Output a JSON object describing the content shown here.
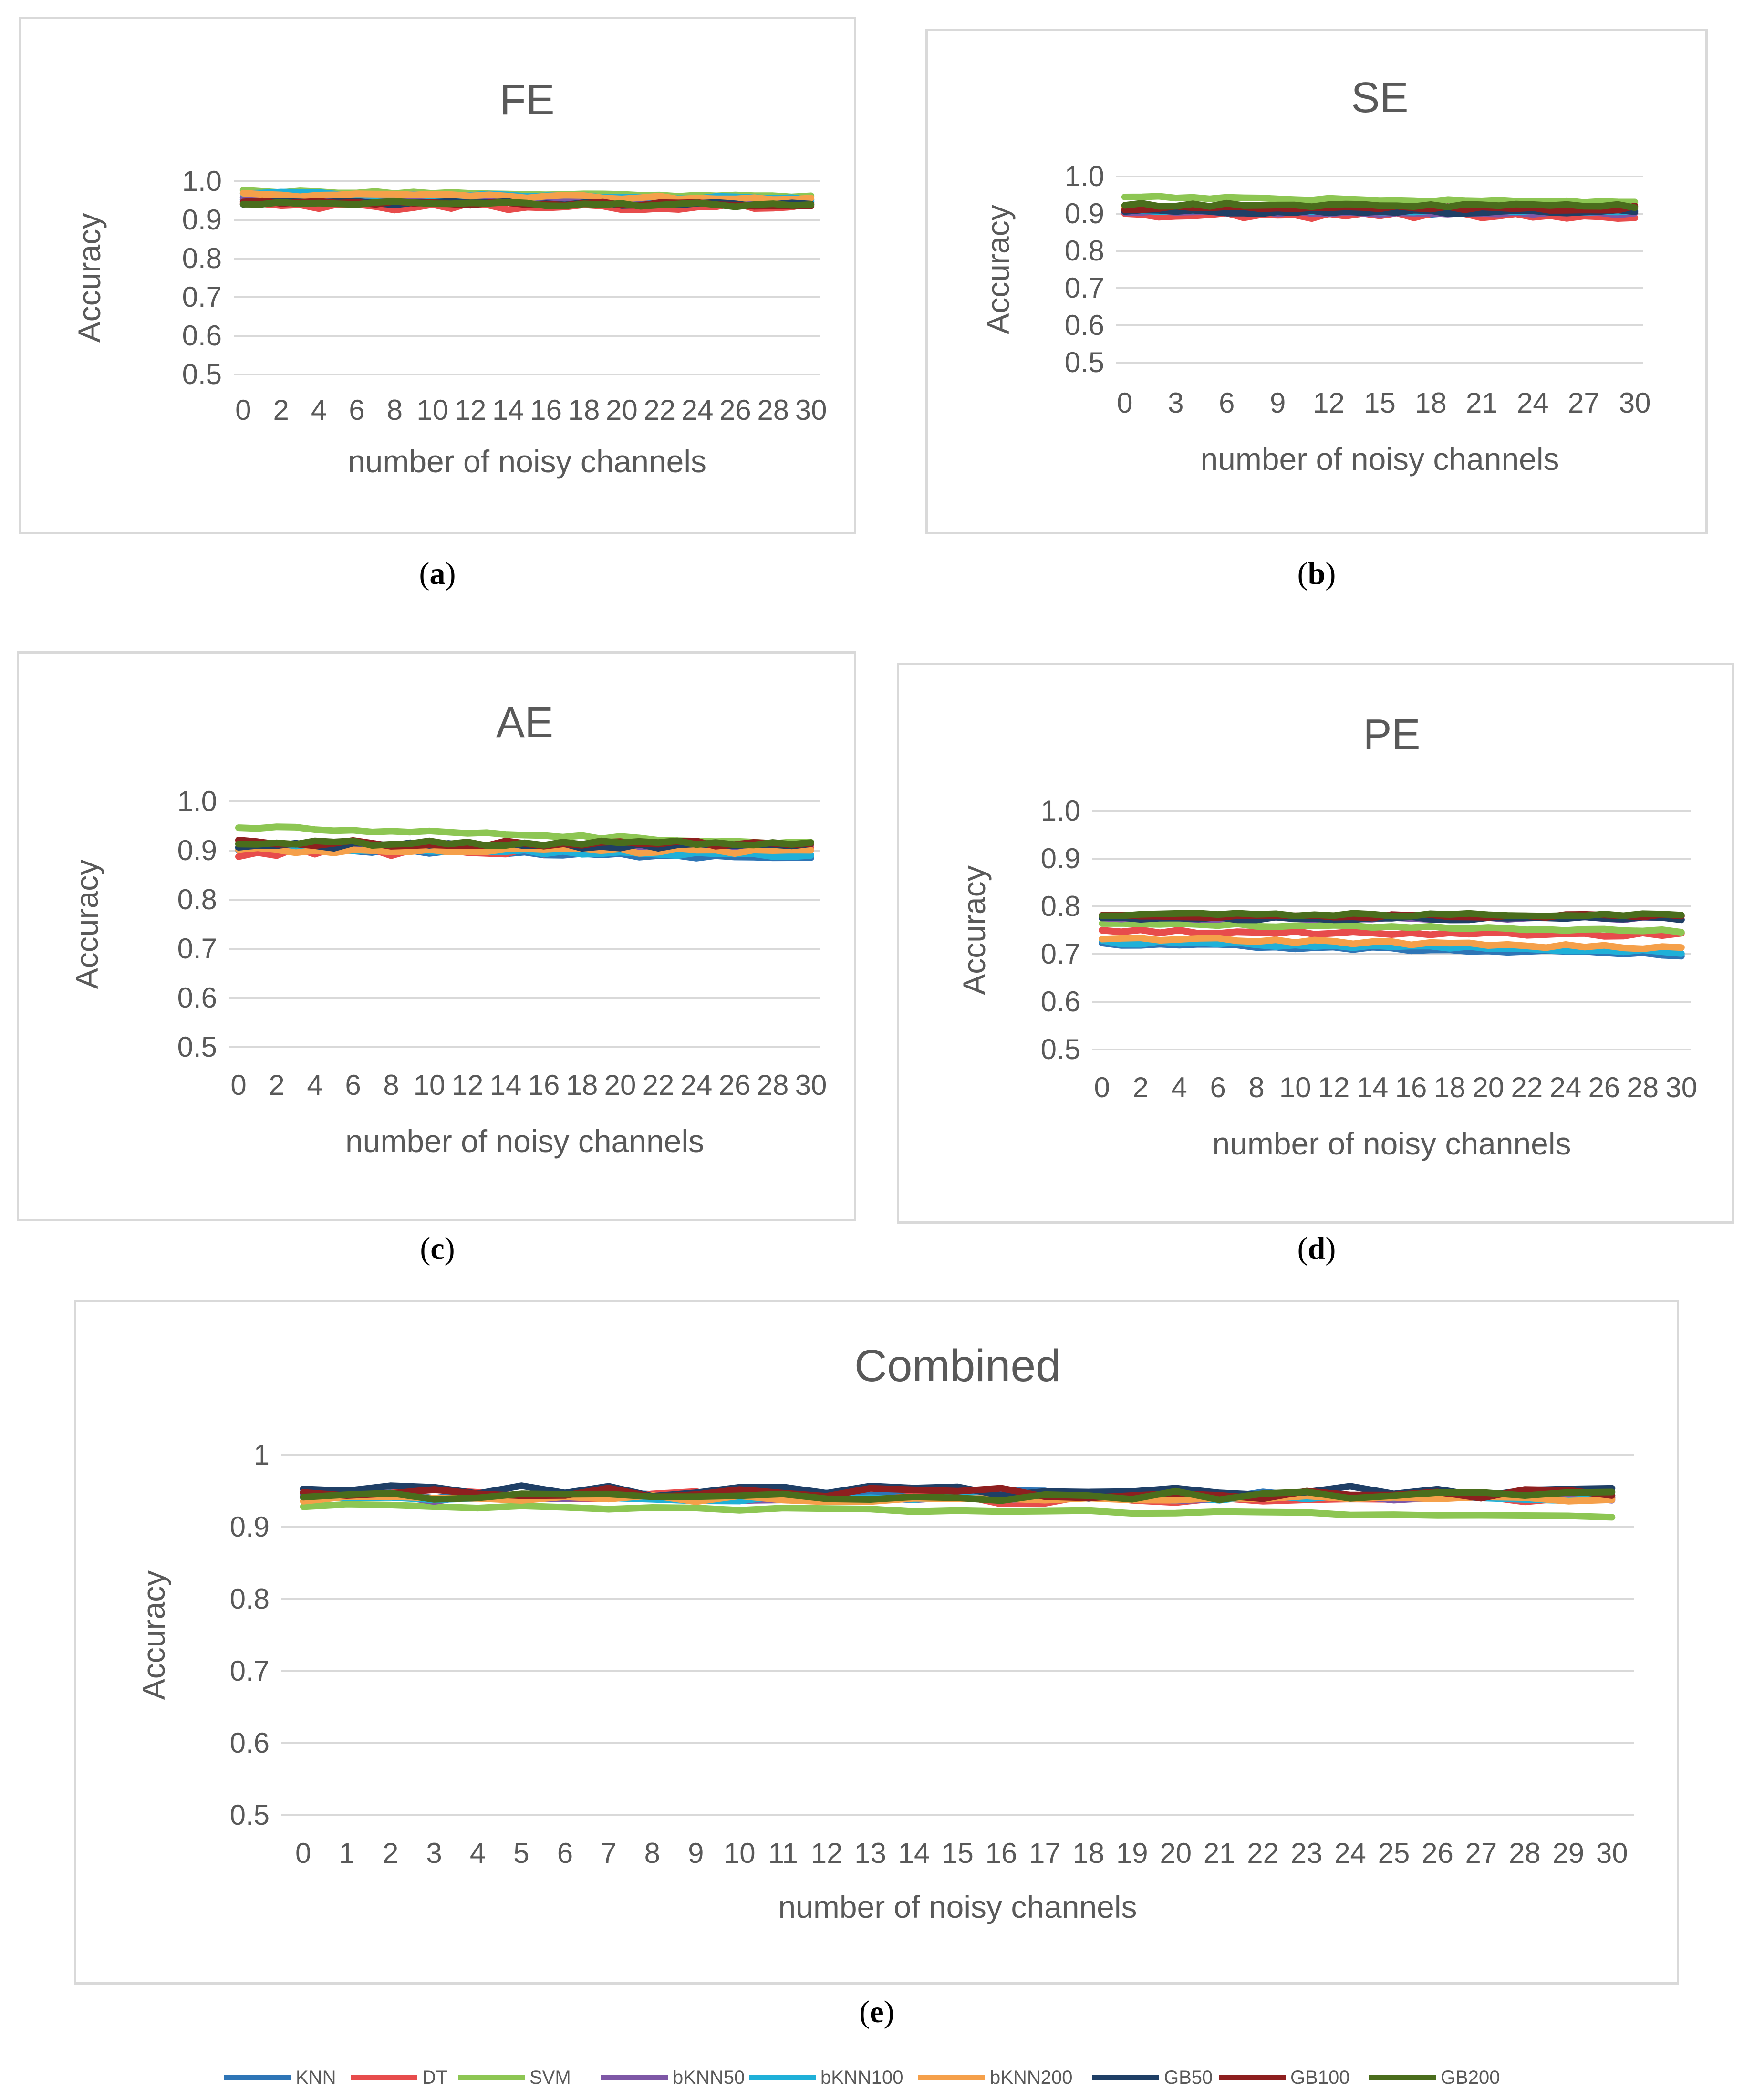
{
  "legend": [
    {
      "name": "KNN",
      "color": "#2E75B6"
    },
    {
      "name": "DT",
      "color": "#E74C4C"
    },
    {
      "name": "SVM",
      "color": "#8DC653"
    },
    {
      "name": "bKNN50",
      "color": "#7E57A6"
    },
    {
      "name": "bKNN100",
      "color": "#1FB0D8"
    },
    {
      "name": "bKNN200",
      "color": "#F5A04A"
    },
    {
      "name": "GB50",
      "color": "#1F3F66"
    },
    {
      "name": "GB100",
      "color": "#8E1F1F"
    },
    {
      "name": "GB200",
      "color": "#4A6D1C"
    }
  ],
  "captions": {
    "a": "a",
    "b": "b",
    "c": "c",
    "d": "d",
    "e": "e"
  },
  "chart_data": [
    {
      "id": "FE",
      "type": "line",
      "title": "FE",
      "xlabel": "number of noisy channels",
      "ylabel": "Accuracy",
      "ylim": [
        0.5,
        1.0
      ],
      "yticks": [
        "0.5",
        "0.6",
        "0.7",
        "0.8",
        "0.9",
        "1.0"
      ],
      "xticks": [
        "0",
        "2",
        "4",
        "6",
        "8",
        "10",
        "12",
        "14",
        "16",
        "18",
        "20",
        "22",
        "24",
        "26",
        "28",
        "30"
      ],
      "x_count": 31,
      "series": [
        {
          "name": "KNN",
          "start": 0.955,
          "end": 0.95,
          "jitter": 0.004
        },
        {
          "name": "DT",
          "start": 0.935,
          "end": 0.935,
          "jitter": 0.01
        },
        {
          "name": "SVM",
          "start": 0.975,
          "end": 0.96,
          "jitter": 0.003
        },
        {
          "name": "bKNN50",
          "start": 0.955,
          "end": 0.95,
          "jitter": 0.004
        },
        {
          "name": "bKNN100",
          "start": 0.97,
          "end": 0.955,
          "jitter": 0.004
        },
        {
          "name": "bKNN200",
          "start": 0.965,
          "end": 0.955,
          "jitter": 0.005
        },
        {
          "name": "GB50",
          "start": 0.945,
          "end": 0.94,
          "jitter": 0.005
        },
        {
          "name": "GB100",
          "start": 0.945,
          "end": 0.94,
          "jitter": 0.005
        },
        {
          "name": "GB200",
          "start": 0.945,
          "end": 0.938,
          "jitter": 0.005
        }
      ]
    },
    {
      "id": "SE",
      "type": "line",
      "title": "SE",
      "xlabel": "number of noisy channels",
      "ylabel": "Accuracy",
      "ylim": [
        0.5,
        1.0
      ],
      "yticks": [
        "0.5",
        "0.6",
        "0.7",
        "0.8",
        "0.9",
        "1.0"
      ],
      "xticks": [
        "0",
        "3",
        "6",
        "9",
        "12",
        "15",
        "18",
        "21",
        "24",
        "27",
        "30"
      ],
      "x_count": 31,
      "series": [
        {
          "name": "KNN",
          "start": 0.905,
          "end": 0.9,
          "jitter": 0.004
        },
        {
          "name": "DT",
          "start": 0.895,
          "end": 0.895,
          "jitter": 0.008
        },
        {
          "name": "SVM",
          "start": 0.945,
          "end": 0.93,
          "jitter": 0.003
        },
        {
          "name": "bKNN50",
          "start": 0.905,
          "end": 0.9,
          "jitter": 0.004
        },
        {
          "name": "bKNN100",
          "start": 0.91,
          "end": 0.905,
          "jitter": 0.004
        },
        {
          "name": "bKNN200",
          "start": 0.915,
          "end": 0.91,
          "jitter": 0.004
        },
        {
          "name": "GB50",
          "start": 0.905,
          "end": 0.905,
          "jitter": 0.005
        },
        {
          "name": "GB100",
          "start": 0.915,
          "end": 0.915,
          "jitter": 0.006
        },
        {
          "name": "GB200",
          "start": 0.925,
          "end": 0.92,
          "jitter": 0.005
        }
      ]
    },
    {
      "id": "AE",
      "type": "line",
      "title": "AE",
      "xlabel": "number of noisy channels",
      "ylabel": "Accuracy",
      "ylim": [
        0.5,
        1.0
      ],
      "yticks": [
        "0.5",
        "0.6",
        "0.7",
        "0.8",
        "0.9",
        "1.0"
      ],
      "xticks": [
        "0",
        "2",
        "4",
        "6",
        "8",
        "10",
        "12",
        "14",
        "16",
        "18",
        "20",
        "22",
        "24",
        "26",
        "28",
        "30"
      ],
      "x_count": 31,
      "series": [
        {
          "name": "KNN",
          "start": 0.905,
          "end": 0.885,
          "jitter": 0.005
        },
        {
          "name": "DT",
          "start": 0.895,
          "end": 0.905,
          "jitter": 0.01
        },
        {
          "name": "SVM",
          "start": 0.948,
          "end": 0.915,
          "jitter": 0.003
        },
        {
          "name": "bKNN50",
          "start": 0.905,
          "end": 0.9,
          "jitter": 0.004
        },
        {
          "name": "bKNN100",
          "start": 0.905,
          "end": 0.89,
          "jitter": 0.004
        },
        {
          "name": "bKNN200",
          "start": 0.9,
          "end": 0.9,
          "jitter": 0.006
        },
        {
          "name": "GB50",
          "start": 0.91,
          "end": 0.91,
          "jitter": 0.006
        },
        {
          "name": "GB100",
          "start": 0.915,
          "end": 0.915,
          "jitter": 0.007
        },
        {
          "name": "GB200",
          "start": 0.915,
          "end": 0.915,
          "jitter": 0.005
        }
      ]
    },
    {
      "id": "PE",
      "type": "line",
      "title": "PE",
      "xlabel": "number of noisy channels",
      "ylabel": "Accuracy",
      "ylim": [
        0.5,
        1.0
      ],
      "yticks": [
        "0.5",
        "0.6",
        "0.7",
        "0.8",
        "0.9",
        "1.0"
      ],
      "xticks": [
        "0",
        "2",
        "4",
        "6",
        "8",
        "10",
        "12",
        "14",
        "16",
        "18",
        "20",
        "22",
        "24",
        "26",
        "28",
        "30"
      ],
      "x_count": 31,
      "series": [
        {
          "name": "KNN",
          "start": 0.722,
          "end": 0.698,
          "jitter": 0.004
        },
        {
          "name": "DT",
          "start": 0.748,
          "end": 0.74,
          "jitter": 0.004
        },
        {
          "name": "SVM",
          "start": 0.765,
          "end": 0.748,
          "jitter": 0.003
        },
        {
          "name": "bKNN50",
          "start": 0.775,
          "end": 0.775,
          "jitter": 0.003
        },
        {
          "name": "bKNN100",
          "start": 0.725,
          "end": 0.705,
          "jitter": 0.004
        },
        {
          "name": "bKNN200",
          "start": 0.735,
          "end": 0.712,
          "jitter": 0.004
        },
        {
          "name": "GB50",
          "start": 0.775,
          "end": 0.775,
          "jitter": 0.004
        },
        {
          "name": "GB100",
          "start": 0.778,
          "end": 0.78,
          "jitter": 0.004
        },
        {
          "name": "GB200",
          "start": 0.783,
          "end": 0.782,
          "jitter": 0.003
        }
      ]
    },
    {
      "id": "Combined",
      "type": "line",
      "title": "Combined",
      "xlabel": "number of noisy channels",
      "ylabel": "Accuracy",
      "ylim": [
        0.5,
        1.0
      ],
      "yticks": [
        "0.5",
        "0.6",
        "0.7",
        "0.8",
        "0.9",
        "1"
      ],
      "xticks": [
        "0",
        "1",
        "2",
        "3",
        "4",
        "5",
        "6",
        "7",
        "8",
        "9",
        "10",
        "11",
        "12",
        "13",
        "14",
        "15",
        "16",
        "17",
        "18",
        "19",
        "20",
        "21",
        "22",
        "23",
        "24",
        "25",
        "26",
        "27",
        "28",
        "29",
        "30"
      ],
      "x_count": 31,
      "series": [
        {
          "name": "KNN",
          "start": 0.945,
          "end": 0.945,
          "jitter": 0.006
        },
        {
          "name": "DT",
          "start": 0.945,
          "end": 0.935,
          "jitter": 0.008
        },
        {
          "name": "SVM",
          "start": 0.93,
          "end": 0.915,
          "jitter": 0.002
        },
        {
          "name": "bKNN50",
          "start": 0.94,
          "end": 0.94,
          "jitter": 0.005
        },
        {
          "name": "bKNN100",
          "start": 0.94,
          "end": 0.94,
          "jitter": 0.005
        },
        {
          "name": "bKNN200",
          "start": 0.94,
          "end": 0.94,
          "jitter": 0.005
        },
        {
          "name": "GB50",
          "start": 0.95,
          "end": 0.95,
          "jitter": 0.008
        },
        {
          "name": "GB100",
          "start": 0.95,
          "end": 0.945,
          "jitter": 0.007
        },
        {
          "name": "GB200",
          "start": 0.94,
          "end": 0.945,
          "jitter": 0.007
        }
      ]
    }
  ]
}
